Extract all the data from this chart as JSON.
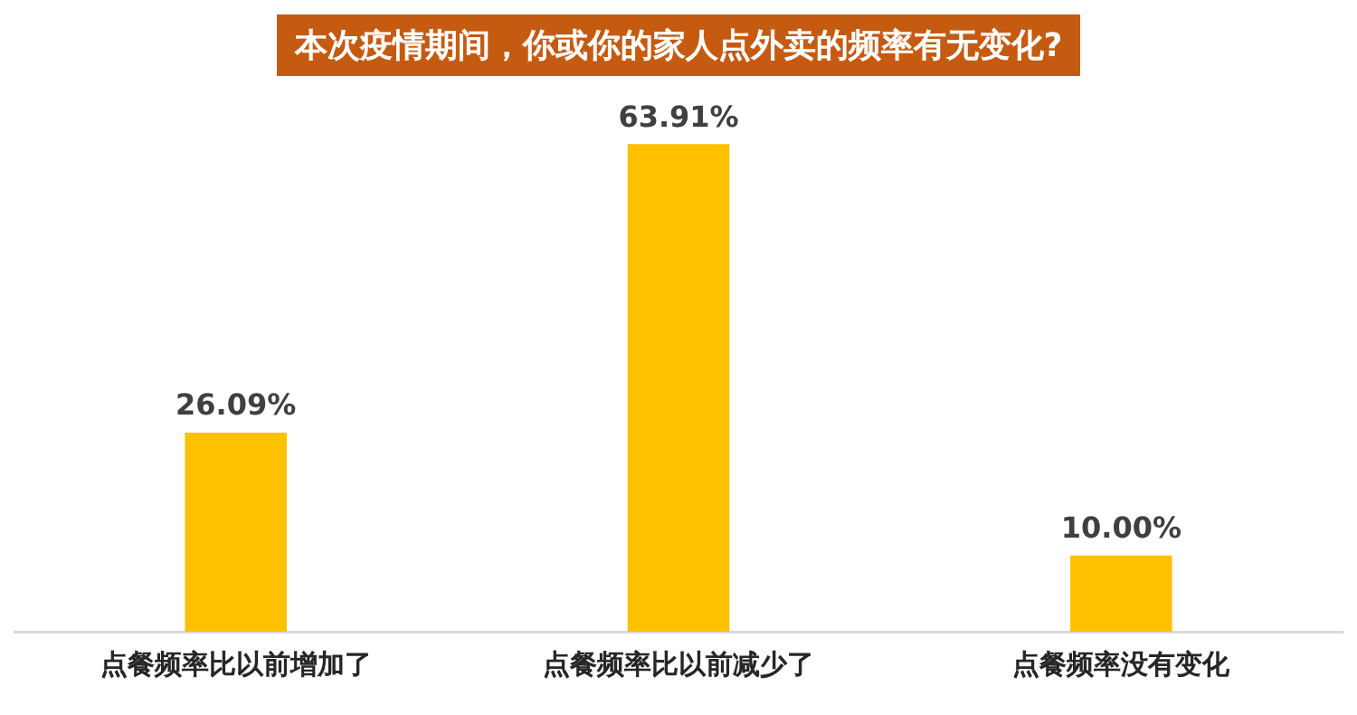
{
  "chart_data": {
    "type": "bar",
    "title": "本次疫情期间，你或你的家人点外卖的频率有无变化?",
    "categories": [
      "点餐频率比以前增加了",
      "点餐频率比以前减少了",
      "点餐频率没有变化"
    ],
    "values": [
      26.09,
      63.91,
      10.0
    ],
    "value_labels": [
      "26.09%",
      "63.91%",
      "10.00%"
    ],
    "color": "#ffc000",
    "grid": false,
    "legend": false
  }
}
